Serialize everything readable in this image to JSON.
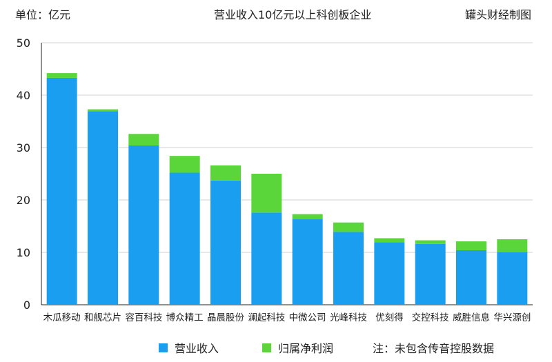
{
  "header": {
    "unit": "单位：亿元",
    "title": "营业收入10亿元以上科创板企业",
    "source": "罐头财经制图"
  },
  "legend": {
    "revenue_label": "营业收入",
    "profit_label": "归属净利润",
    "note": "注：未包含传音控股数据"
  },
  "colors": {
    "revenue": "#1a9ff0",
    "profit": "#5ad63a",
    "grid": "#d0d0d0",
    "axis": "#222222"
  },
  "chart_data": {
    "type": "bar",
    "stacked": true,
    "categories": [
      "木瓜移动",
      "和舰芯片",
      "容百科技",
      "博众精工",
      "晶晨股份",
      "澜起科技",
      "中微公司",
      "光峰科技",
      "优刻得",
      "交控科技",
      "威胜信息",
      "华兴源创"
    ],
    "series": [
      {
        "name": "营业收入",
        "values": [
          43.3,
          36.9,
          30.4,
          25.2,
          23.7,
          17.6,
          16.4,
          13.9,
          11.9,
          11.6,
          10.4,
          10.1
        ]
      },
      {
        "name": "归属净利润",
        "values": [
          0.9,
          0.4,
          2.2,
          3.2,
          2.9,
          7.4,
          0.9,
          1.8,
          0.8,
          0.7,
          1.7,
          2.4
        ]
      }
    ],
    "yticks": [
      0,
      10,
      20,
      30,
      40,
      50
    ],
    "ylim": [
      0,
      50
    ],
    "grid": true,
    "legend_position": "bottom"
  }
}
